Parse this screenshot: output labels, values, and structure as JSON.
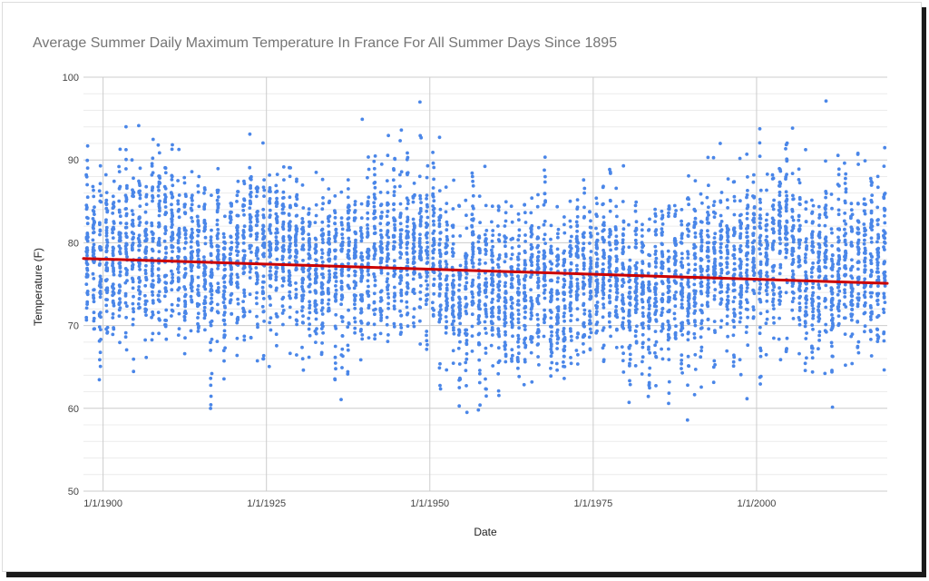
{
  "chart_data": {
    "type": "scatter",
    "title": "Average Summer Daily Maximum Temperature In France For All Summer Days Since 1895",
    "xlabel": "Date",
    "ylabel": "Temperature (F)",
    "xlim": [
      "1/1/1897",
      "12/31/2019"
    ],
    "ylim": [
      50,
      100
    ],
    "x_ticks": [
      "1/1/1900",
      "1/1/1925",
      "1/1/1950",
      "1/1/1975",
      "1/1/2000"
    ],
    "y_ticks": [
      50,
      60,
      70,
      80,
      90,
      100
    ],
    "grid": true,
    "minor_grid_step": 2,
    "series": [
      {
        "color": "#4a86e8",
        "description_points": "one point per summer day, roughly 60 to 98 F",
        "yearly_means": [
          {
            "year": 1897,
            "mean": 79.5,
            "sd": 4.8
          },
          {
            "year": 1900,
            "mean": 78.5,
            "sd": 5.0
          },
          {
            "year": 1905,
            "mean": 79.0,
            "sd": 5.0
          },
          {
            "year": 1911,
            "mean": 80.0,
            "sd": 5.2
          },
          {
            "year": 1915,
            "mean": 77.5,
            "sd": 4.8
          },
          {
            "year": 1921,
            "mean": 79.0,
            "sd": 5.0
          },
          {
            "year": 1928,
            "mean": 77.5,
            "sd": 4.8
          },
          {
            "year": 1937,
            "mean": 77.0,
            "sd": 4.9
          },
          {
            "year": 1947,
            "mean": 79.5,
            "sd": 5.3
          },
          {
            "year": 1952,
            "mean": 75.5,
            "sd": 5.0
          },
          {
            "year": 1956,
            "mean": 74.0,
            "sd": 5.2
          },
          {
            "year": 1962,
            "mean": 74.5,
            "sd": 5.2
          },
          {
            "year": 1968,
            "mean": 74.5,
            "sd": 5.0
          },
          {
            "year": 1976,
            "mean": 77.0,
            "sd": 5.0
          },
          {
            "year": 1980,
            "mean": 74.0,
            "sd": 4.8
          },
          {
            "year": 1986,
            "mean": 74.5,
            "sd": 4.8
          },
          {
            "year": 1990,
            "mean": 76.5,
            "sd": 5.0
          },
          {
            "year": 1995,
            "mean": 76.5,
            "sd": 4.9
          },
          {
            "year": 2003,
            "mean": 80.0,
            "sd": 5.5
          },
          {
            "year": 2010,
            "mean": 76.5,
            "sd": 4.8
          },
          {
            "year": 2015,
            "mean": 77.5,
            "sd": 5.0
          },
          {
            "year": 2019,
            "mean": 78.0,
            "sd": 5.0
          }
        ]
      }
    ],
    "trendline": {
      "color": "#cc0000",
      "start": {
        "x": "1/1/1897",
        "y": 78.1
      },
      "end": {
        "x": "12/31/2019",
        "y": 75.1
      }
    }
  }
}
